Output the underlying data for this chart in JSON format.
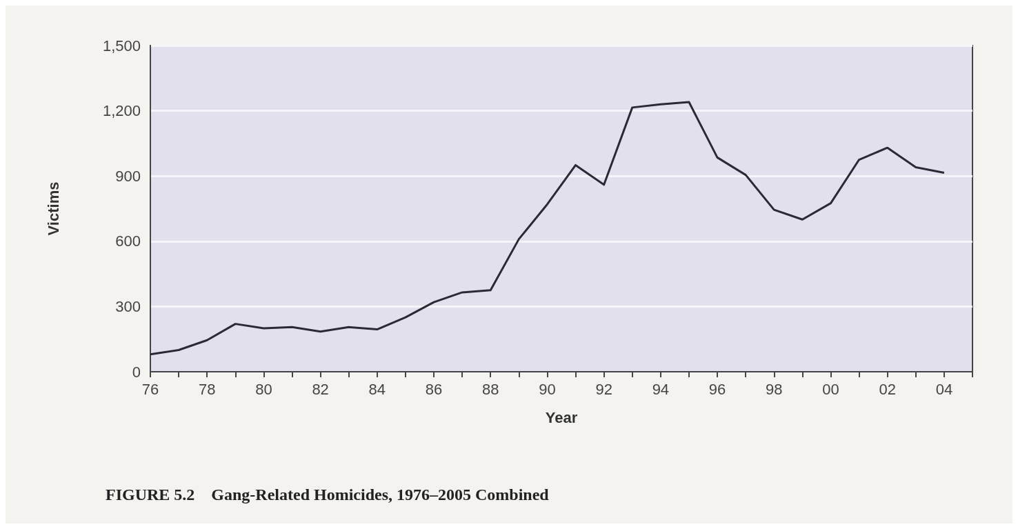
{
  "chart_data": {
    "type": "line",
    "title": "FIGURE 5.2    Gang-Related Homicides, 1976–2005 Combined",
    "xlabel": "Year",
    "ylabel": "Victims",
    "x": [
      1976,
      1977,
      1978,
      1979,
      1980,
      1981,
      1982,
      1983,
      1984,
      1985,
      1986,
      1987,
      1988,
      1989,
      1990,
      1991,
      1992,
      1993,
      1994,
      1995,
      1996,
      1997,
      1998,
      1999,
      2000,
      2001,
      2002,
      2003,
      2004
    ],
    "series": [
      {
        "color": "#2a2a35",
        "values": [
          80,
          100,
          145,
          220,
          200,
          205,
          185,
          205,
          195,
          250,
          320,
          365,
          375,
          610,
          770,
          950,
          860,
          1215,
          1230,
          1240,
          985,
          905,
          745,
          700,
          775,
          975,
          1030,
          940,
          915
        ]
      }
    ],
    "xlim": [
      1976,
      2005
    ],
    "xticks": [
      {
        "value": 1976,
        "label": "76"
      },
      {
        "value": 1977,
        "label": null
      },
      {
        "value": 1978,
        "label": "78"
      },
      {
        "value": 1979,
        "label": null
      },
      {
        "value": 1980,
        "label": "80"
      },
      {
        "value": 1981,
        "label": null
      },
      {
        "value": 1982,
        "label": "82"
      },
      {
        "value": 1983,
        "label": null
      },
      {
        "value": 1984,
        "label": "84"
      },
      {
        "value": 1985,
        "label": null
      },
      {
        "value": 1986,
        "label": "86"
      },
      {
        "value": 1987,
        "label": null
      },
      {
        "value": 1988,
        "label": "88"
      },
      {
        "value": 1989,
        "label": null
      },
      {
        "value": 1990,
        "label": "90"
      },
      {
        "value": 1991,
        "label": null
      },
      {
        "value": 1992,
        "label": "92"
      },
      {
        "value": 1993,
        "label": null
      },
      {
        "value": 1994,
        "label": "94"
      },
      {
        "value": 1995,
        "label": null
      },
      {
        "value": 1996,
        "label": "96"
      },
      {
        "value": 1997,
        "label": null
      },
      {
        "value": 1998,
        "label": "98"
      },
      {
        "value": 1999,
        "label": null
      },
      {
        "value": 2000,
        "label": "00"
      },
      {
        "value": 2001,
        "label": null
      },
      {
        "value": 2002,
        "label": "02"
      },
      {
        "value": 2003,
        "label": null
      },
      {
        "value": 2004,
        "label": "04"
      },
      {
        "value": 2005,
        "label": null
      }
    ],
    "ylim": [
      0,
      1500
    ],
    "yticks": [
      0,
      300,
      600,
      900,
      {
        "value": 1200,
        "label": "1,200"
      },
      {
        "value": 1500,
        "label": "1,500"
      }
    ],
    "grid": "y",
    "marker": "none",
    "line_style": "solid"
  }
}
